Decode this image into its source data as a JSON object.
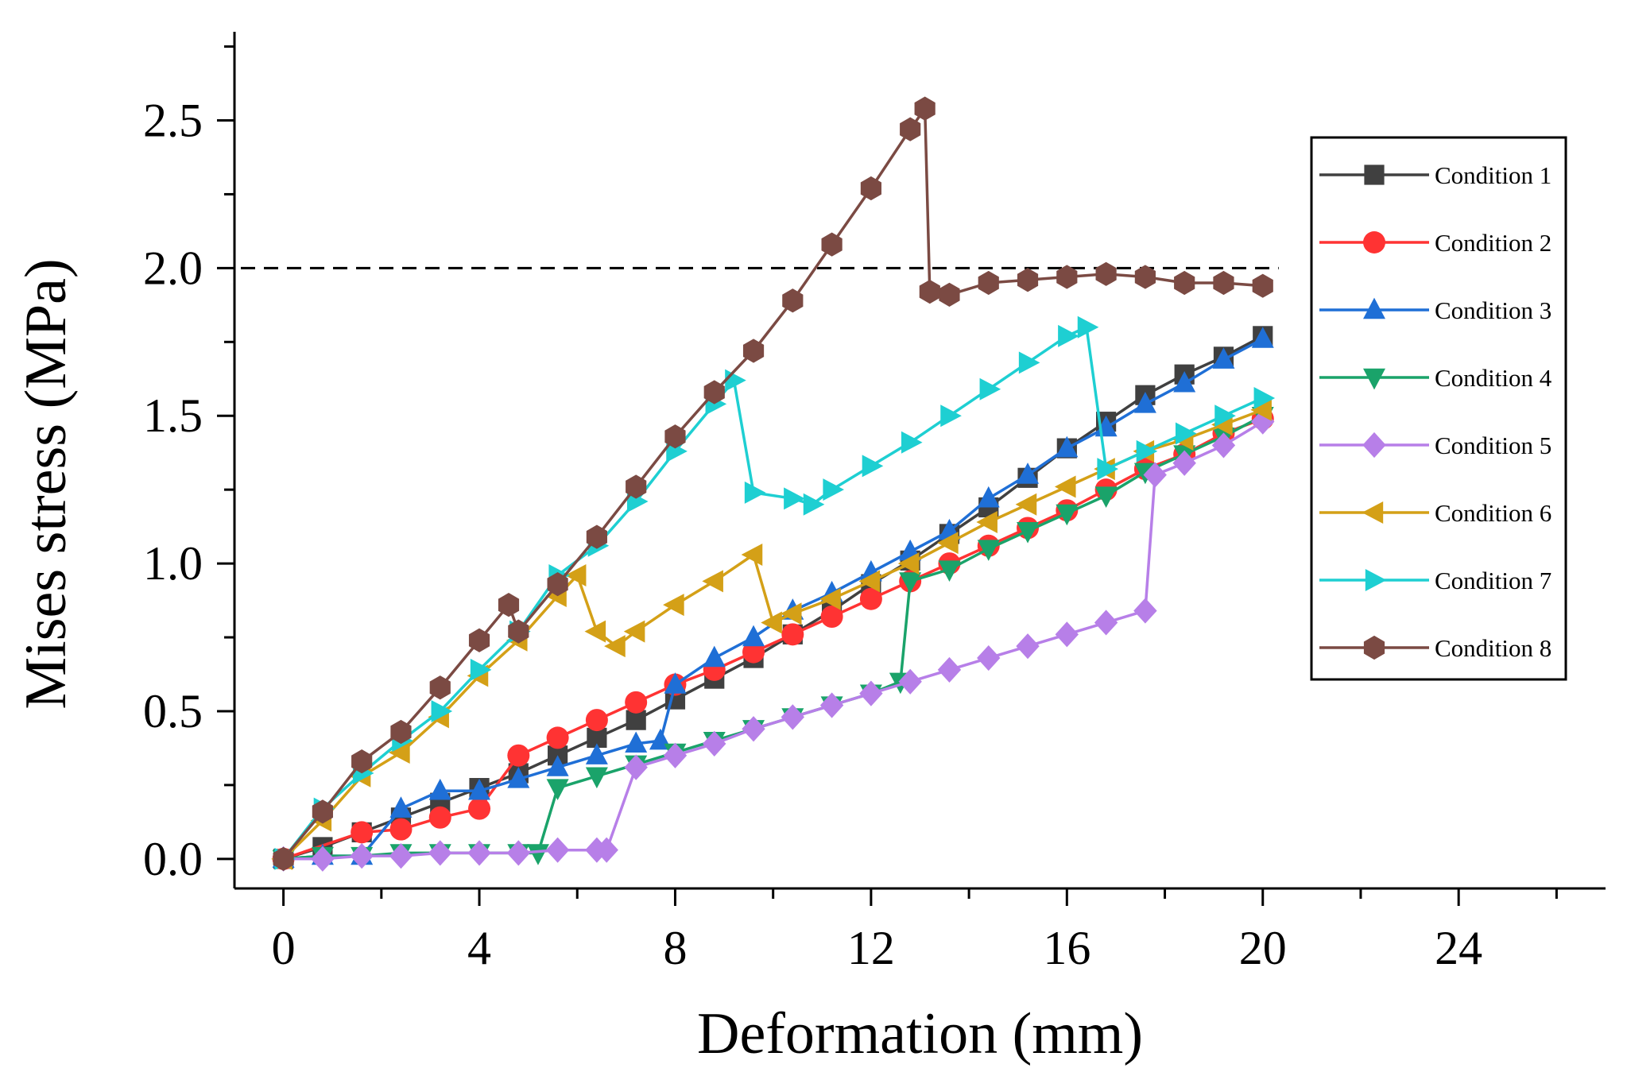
{
  "chart_data": {
    "type": "line",
    "title": "",
    "xlabel": "Deformation (mm)",
    "ylabel": "Mises stress (MPa)",
    "xlim": [
      -1,
      27
    ],
    "ylim": [
      -0.1,
      2.8
    ],
    "xticks": [
      0,
      4,
      8,
      12,
      16,
      20,
      24
    ],
    "xtick_labels": [
      "0",
      "4",
      "8",
      "12",
      "16",
      "20",
      "24"
    ],
    "yticks": [
      0.0,
      0.5,
      1.0,
      1.5,
      2.0,
      2.5
    ],
    "ytick_labels": [
      "0.0",
      "0.5",
      "1.0",
      "1.5",
      "2.0",
      "2.5"
    ],
    "reference_line": {
      "y": 2.0,
      "x_range": [
        -1,
        20
      ],
      "style": "dashed"
    },
    "legend_position": "right",
    "series": [
      {
        "name": "Condition 1",
        "color": "#404040",
        "marker": "square",
        "x": [
          0,
          0.8,
          1.6,
          2.4,
          3.2,
          4.0,
          4.8,
          5.6,
          6.4,
          7.2,
          8.0,
          8.8,
          9.6,
          10.4,
          11.2,
          12.0,
          12.8,
          13.6,
          14.4,
          15.2,
          16.0,
          16.8,
          17.6,
          18.4,
          19.2,
          20.0
        ],
        "y": [
          0.0,
          0.04,
          0.09,
          0.14,
          0.19,
          0.24,
          0.29,
          0.35,
          0.41,
          0.47,
          0.54,
          0.61,
          0.68,
          0.76,
          0.84,
          0.93,
          1.01,
          1.1,
          1.19,
          1.29,
          1.39,
          1.48,
          1.57,
          1.64,
          1.7,
          1.77
        ]
      },
      {
        "name": "Condition 2",
        "color": "#ff3333",
        "marker": "circle",
        "x": [
          0,
          1.6,
          2.4,
          3.2,
          4.0,
          4.8,
          5.6,
          6.4,
          7.2,
          8.0,
          8.8,
          9.6,
          10.4,
          11.2,
          12.0,
          12.8,
          13.6,
          14.4,
          15.2,
          16.0,
          16.8,
          17.6,
          18.4,
          19.2,
          20.0
        ],
        "y": [
          0.0,
          0.09,
          0.1,
          0.14,
          0.17,
          0.35,
          0.41,
          0.47,
          0.53,
          0.59,
          0.64,
          0.7,
          0.76,
          0.82,
          0.88,
          0.94,
          1.0,
          1.06,
          1.12,
          1.18,
          1.25,
          1.32,
          1.37,
          1.44,
          1.49
        ]
      },
      {
        "name": "Condition 3",
        "color": "#1f6fd6",
        "marker": "triangle-up",
        "x": [
          0,
          0.8,
          1.6,
          2.4,
          3.2,
          4.0,
          4.8,
          5.6,
          6.4,
          7.2,
          7.7,
          8.0,
          8.8,
          9.6,
          10.4,
          11.2,
          12.0,
          12.8,
          13.6,
          14.4,
          15.2,
          16.0,
          16.8,
          17.6,
          18.4,
          19.2,
          20.0
        ],
        "y": [
          0.0,
          0.01,
          0.01,
          0.17,
          0.23,
          0.23,
          0.27,
          0.31,
          0.35,
          0.39,
          0.4,
          0.59,
          0.68,
          0.75,
          0.84,
          0.9,
          0.97,
          1.04,
          1.11,
          1.22,
          1.3,
          1.39,
          1.46,
          1.54,
          1.61,
          1.69,
          1.76
        ]
      },
      {
        "name": "Condition 4",
        "color": "#1aa36a",
        "marker": "triangle-down",
        "x": [
          0,
          0.8,
          1.6,
          2.4,
          3.2,
          4.0,
          4.8,
          5.2,
          5.6,
          6.4,
          7.2,
          8.0,
          8.8,
          9.6,
          10.4,
          11.2,
          12.0,
          12.6,
          12.8,
          13.6,
          14.4,
          15.2,
          16.0,
          16.8,
          17.6,
          18.4,
          19.2,
          20.0
        ],
        "y": [
          0.0,
          0.01,
          0.01,
          0.02,
          0.02,
          0.02,
          0.02,
          0.02,
          0.24,
          0.28,
          0.32,
          0.36,
          0.4,
          0.44,
          0.48,
          0.52,
          0.56,
          0.6,
          0.94,
          0.98,
          1.05,
          1.11,
          1.17,
          1.23,
          1.31,
          1.37,
          1.43,
          1.5
        ]
      },
      {
        "name": "Condition 5",
        "color": "#b77fe8",
        "marker": "diamond",
        "x": [
          0,
          0.8,
          1.6,
          2.4,
          3.2,
          4.0,
          4.8,
          5.6,
          6.4,
          6.6,
          7.2,
          8.0,
          8.8,
          9.6,
          10.4,
          11.2,
          12.0,
          12.8,
          13.6,
          14.4,
          15.2,
          16.0,
          16.8,
          17.6,
          17.8,
          18.4,
          19.2,
          20.0
        ],
        "y": [
          0.0,
          0.0,
          0.01,
          0.01,
          0.02,
          0.02,
          0.02,
          0.03,
          0.03,
          0.03,
          0.31,
          0.35,
          0.39,
          0.44,
          0.48,
          0.52,
          0.56,
          0.6,
          0.64,
          0.68,
          0.72,
          0.76,
          0.8,
          0.84,
          1.3,
          1.34,
          1.4,
          1.48
        ]
      },
      {
        "name": "Condition 6",
        "color": "#d4a017",
        "marker": "triangle-left",
        "x": [
          0,
          0.8,
          1.6,
          2.4,
          3.2,
          4.0,
          4.8,
          5.6,
          6.0,
          6.4,
          6.8,
          7.2,
          8.0,
          8.8,
          9.6,
          10.0,
          10.4,
          11.2,
          12.0,
          12.8,
          13.6,
          14.4,
          15.2,
          16.0,
          16.8,
          17.6,
          18.4,
          19.2,
          20.0
        ],
        "y": [
          0.0,
          0.13,
          0.28,
          0.36,
          0.48,
          0.62,
          0.74,
          0.89,
          0.96,
          0.77,
          0.72,
          0.77,
          0.86,
          0.94,
          1.03,
          0.8,
          0.83,
          0.88,
          0.94,
          1.0,
          1.07,
          1.14,
          1.2,
          1.26,
          1.32,
          1.38,
          1.42,
          1.47,
          1.52
        ]
      },
      {
        "name": "Condition 7",
        "color": "#1ecfd2",
        "marker": "triangle-right",
        "x": [
          0,
          0.8,
          1.6,
          2.4,
          3.2,
          4.0,
          4.8,
          5.6,
          6.4,
          7.2,
          8.0,
          8.8,
          9.2,
          9.6,
          10.4,
          10.8,
          11.2,
          12.0,
          12.8,
          13.6,
          14.4,
          15.2,
          16.0,
          16.4,
          16.8,
          17.6,
          18.4,
          19.2,
          20.0
        ],
        "y": [
          0.0,
          0.17,
          0.29,
          0.4,
          0.5,
          0.64,
          0.77,
          0.96,
          1.06,
          1.21,
          1.38,
          1.54,
          1.62,
          1.24,
          1.22,
          1.2,
          1.25,
          1.33,
          1.41,
          1.5,
          1.59,
          1.68,
          1.77,
          1.8,
          1.32,
          1.38,
          1.44,
          1.5,
          1.56
        ]
      },
      {
        "name": "Condition 8",
        "color": "#7b4a43",
        "marker": "hexagon",
        "x": [
          0,
          0.8,
          1.6,
          2.4,
          3.2,
          4.0,
          4.6,
          4.8,
          5.6,
          6.4,
          7.2,
          8.0,
          8.8,
          9.6,
          10.4,
          11.2,
          12.0,
          12.8,
          13.1,
          13.2,
          13.6,
          14.4,
          15.2,
          16.0,
          16.8,
          17.6,
          18.4,
          19.2,
          20.0
        ],
        "y": [
          0.0,
          0.16,
          0.33,
          0.43,
          0.58,
          0.74,
          0.86,
          0.77,
          0.93,
          1.09,
          1.26,
          1.43,
          1.58,
          1.72,
          1.89,
          2.08,
          2.27,
          2.47,
          2.54,
          1.92,
          1.91,
          1.95,
          1.96,
          1.97,
          1.98,
          1.97,
          1.95,
          1.95,
          1.94
        ]
      }
    ]
  }
}
